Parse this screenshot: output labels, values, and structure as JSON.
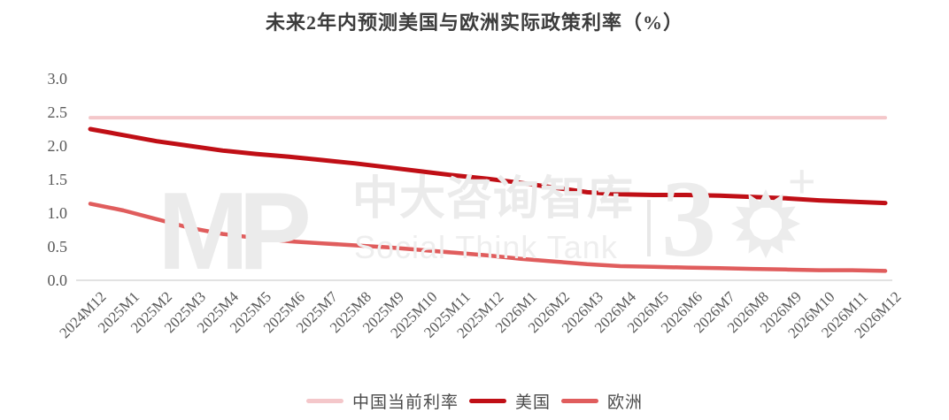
{
  "page": {
    "background": "#FFFFFF"
  },
  "chart_data": {
    "type": "line",
    "title": "未来2年内预测美国与欧洲实际政策利率（%）",
    "xlabel": "",
    "ylabel": "",
    "ylim": [
      0.0,
      3.0
    ],
    "grid": "off",
    "legend_position": "bottom",
    "axis_color": "#D9D9D9",
    "label_color": "#595959",
    "y_ticks": [
      "3.0",
      "2.5",
      "2.0",
      "1.5",
      "1.0",
      "0.5",
      "0.0"
    ],
    "x_labels": [
      "2024M12",
      "2025M1",
      "2025M2",
      "2025M3",
      "2025M4",
      "2025M5",
      "2025M6",
      "2025M7",
      "2025M8",
      "2025M9",
      "2025M10",
      "2025M11",
      "2025M12",
      "2026M1",
      "2026M2",
      "2026M3",
      "2026M4",
      "2026M5",
      "2026M6",
      "2026M7",
      "2026M8",
      "2026M9",
      "2026M10",
      "2026M11",
      "2026M12"
    ],
    "series": [
      {
        "id": "china-current-rate",
        "name": "中国当前利率",
        "color": "#F4C7CA",
        "stroke_width": 4,
        "values": [
          2.42,
          2.42,
          2.42,
          2.42,
          2.42,
          2.42,
          2.42,
          2.42,
          2.42,
          2.42,
          2.42,
          2.42,
          2.42,
          2.42,
          2.42,
          2.42,
          2.42,
          2.42,
          2.42,
          2.42,
          2.42,
          2.42,
          2.42,
          2.42,
          2.42
        ]
      },
      {
        "id": "us",
        "name": "美国",
        "color": "#C00F16",
        "stroke_width": 5,
        "values": [
          2.25,
          2.16,
          2.07,
          2.0,
          1.93,
          1.88,
          1.84,
          1.79,
          1.74,
          1.68,
          1.62,
          1.56,
          1.51,
          1.45,
          1.38,
          1.31,
          1.28,
          1.27,
          1.27,
          1.26,
          1.24,
          1.22,
          1.19,
          1.17,
          1.15
        ]
      },
      {
        "id": "europe",
        "name": "欧洲",
        "color": "#E05D5D",
        "stroke_width": 4.5,
        "values": [
          1.14,
          1.04,
          0.91,
          0.78,
          0.69,
          0.63,
          0.58,
          0.55,
          0.52,
          0.49,
          0.45,
          0.41,
          0.37,
          0.32,
          0.28,
          0.24,
          0.21,
          0.2,
          0.19,
          0.18,
          0.17,
          0.16,
          0.15,
          0.15,
          0.14
        ]
      }
    ]
  },
  "watermark": {
    "logo": "MP",
    "name_cn": "中大咨询智库",
    "name_en": "Social Think Tank",
    "anniversary_number": "3",
    "plus_sign": "+"
  }
}
